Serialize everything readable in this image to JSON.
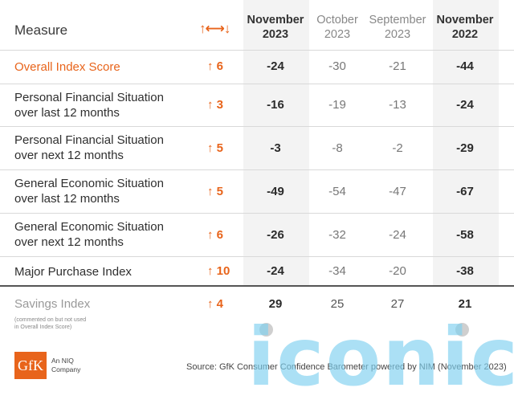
{
  "header": {
    "measure": "Measure",
    "change": "↑⟷↓",
    "columns": [
      {
        "line1": "November",
        "line2": "2023",
        "emphasis": true
      },
      {
        "line1": "October",
        "line2": "2023",
        "emphasis": false
      },
      {
        "line1": "September",
        "line2": "2023",
        "emphasis": false
      },
      {
        "line1": "November",
        "line2": "2022",
        "emphasis": true
      }
    ]
  },
  "rows": [
    {
      "line1": "Overall Index Score",
      "line2": "",
      "change": "↑ 6",
      "values": [
        "-24",
        "-30",
        "-21",
        "-44"
      ]
    },
    {
      "line1": "Personal Financial Situation",
      "line2": "over last 12 months",
      "change": "↑ 3",
      "values": [
        "-16",
        "-19",
        "-13",
        "-24"
      ]
    },
    {
      "line1": "Personal Financial Situation",
      "line2": "over next 12 months",
      "change": "↑ 5",
      "values": [
        "-3",
        "-8",
        "-2",
        "-29"
      ]
    },
    {
      "line1": "General Economic Situation",
      "line2": "over last 12 months",
      "change": "↑ 5",
      "values": [
        "-49",
        "-54",
        "-47",
        "-67"
      ]
    },
    {
      "line1": "General Economic Situation",
      "line2": "over next 12 months",
      "change": "↑ 6",
      "values": [
        "-26",
        "-32",
        "-24",
        "-58"
      ]
    },
    {
      "line1": "Major Purchase Index",
      "line2": "",
      "change": "↑ 10",
      "values": [
        "-24",
        "-34",
        "-20",
        "-38"
      ]
    }
  ],
  "savings": {
    "label": "Savings Index",
    "note1": "(commented on but not used",
    "note2": "in Overall Index Score)",
    "change": "↑ 4",
    "values": [
      "29",
      "25",
      "27",
      "21"
    ]
  },
  "footer": {
    "logo": "GfK",
    "logo_sub1": "An NIQ",
    "logo_sub2": "Company",
    "source": "Source: GfK Consumer Confidence Barometer powered by NIM (November 2023)"
  },
  "watermark": "iconic",
  "colors": {
    "accent": "#e8641b",
    "shade": "#f3f3f3"
  },
  "chart_data": {
    "type": "table",
    "columns": [
      "Measure",
      "↑⟷↓",
      "November 2023",
      "October 2023",
      "September 2023",
      "November 2022"
    ],
    "rows": [
      [
        "Overall Index Score",
        "↑ 6",
        -24,
        -30,
        -21,
        -44
      ],
      [
        "Personal Financial Situation over last 12 months",
        "↑ 3",
        -16,
        -19,
        -13,
        -24
      ],
      [
        "Personal Financial Situation over next 12 months",
        "↑ 5",
        -3,
        -8,
        -2,
        -29
      ],
      [
        "General Economic Situation over last 12 months",
        "↑ 5",
        -49,
        -54,
        -47,
        -67
      ],
      [
        "General Economic Situation over next 12 months",
        "↑ 6",
        -26,
        -32,
        -24,
        -58
      ],
      [
        "Major Purchase Index",
        "↑ 10",
        -24,
        -34,
        -20,
        -38
      ],
      [
        "Savings Index",
        "↑ 4",
        29,
        25,
        27,
        21
      ]
    ]
  }
}
